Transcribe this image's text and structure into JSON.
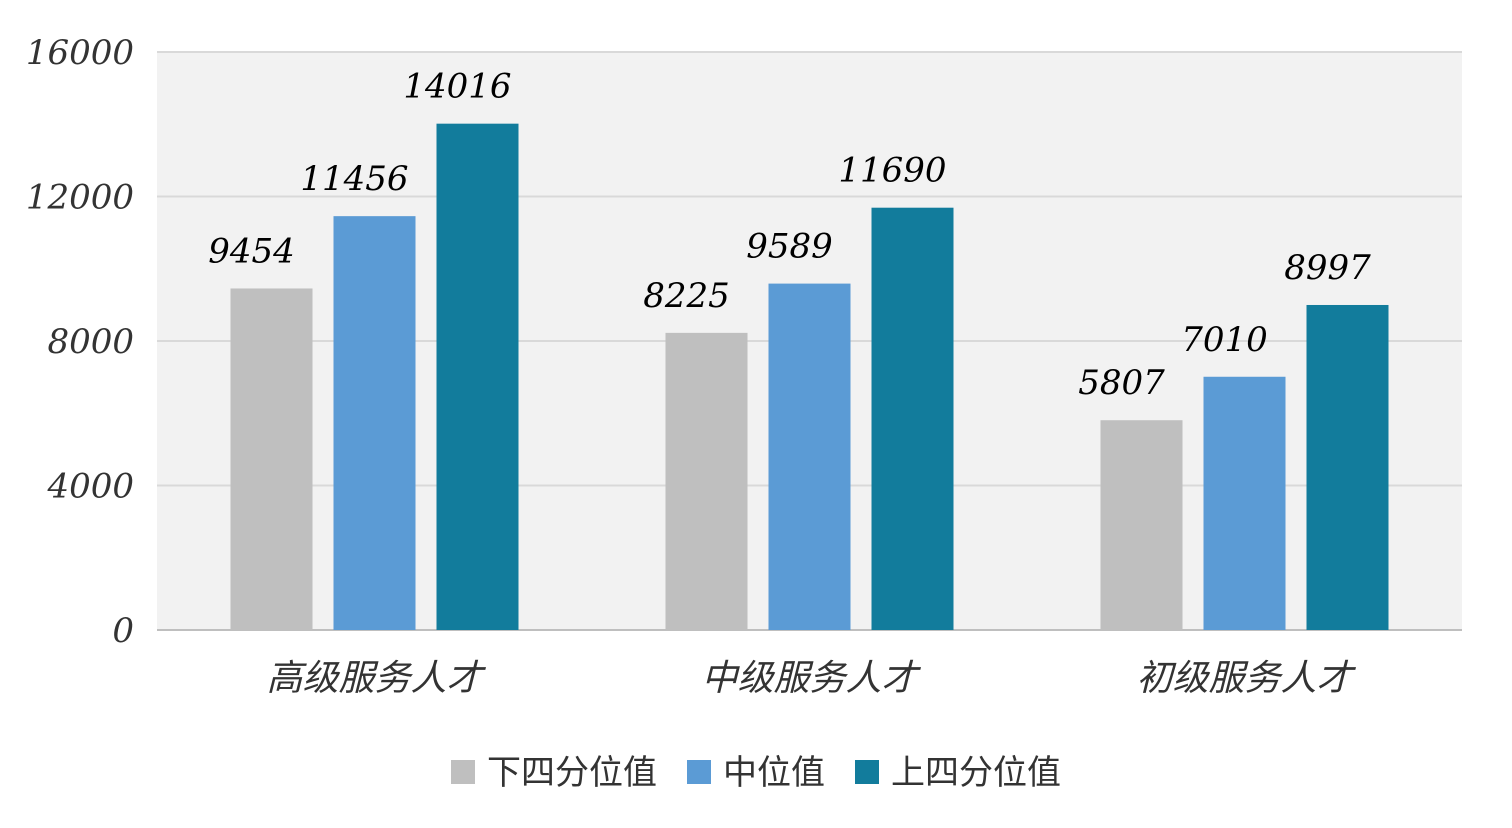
{
  "chart_data": {
    "type": "bar",
    "categories": [
      "高级服务人才",
      "中级服务人才",
      "初级服务人才"
    ],
    "series": [
      {
        "name": "下四分位值",
        "values": [
          9454,
          8225,
          5807
        ],
        "color": "#bfbfbf"
      },
      {
        "name": "中位值",
        "values": [
          11456,
          9589,
          7010
        ],
        "color": "#5b9bd5"
      },
      {
        "name": "上四分位值",
        "values": [
          14016,
          11690,
          8997
        ],
        "color": "#127c9c"
      }
    ],
    "ylim": [
      0,
      16000
    ],
    "yticks": [
      0,
      4000,
      8000,
      12000,
      16000
    ],
    "grid": true,
    "legend_position": "bottom",
    "plot_background": "#f2f2f2",
    "gridline_color": "#d9d9d9"
  }
}
